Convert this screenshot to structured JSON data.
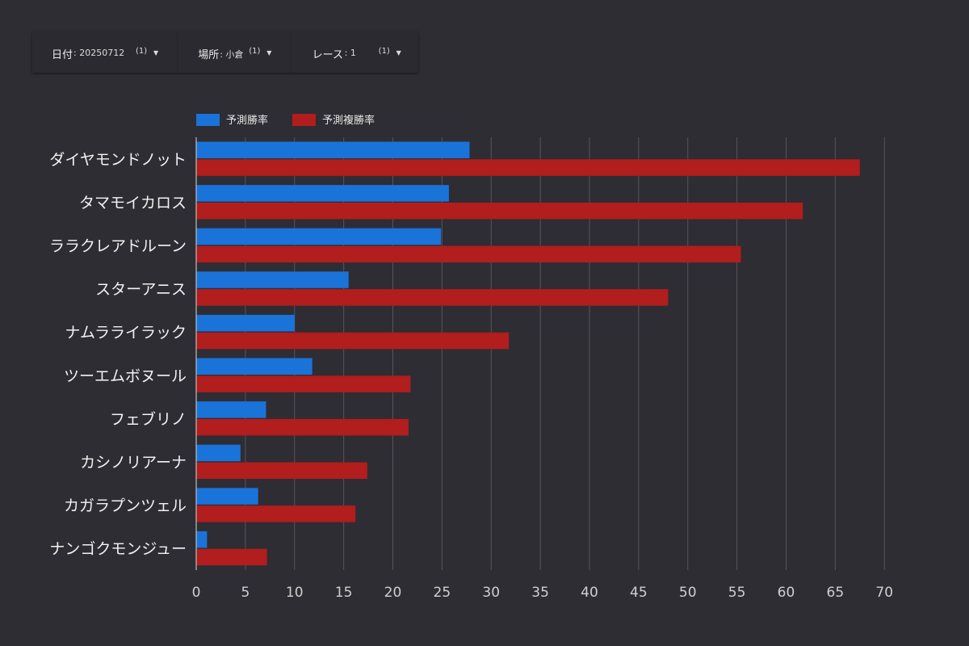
{
  "filters": [
    {
      "label": "日付",
      "value": ": 20250712",
      "count": "(1)"
    },
    {
      "label": "場所",
      "value": ": 小倉",
      "count": "(1)"
    },
    {
      "label": "レース",
      "value": ": 1",
      "count": "(1)"
    }
  ],
  "colors": {
    "win": "#1a73d9",
    "place": "#b21d1d",
    "grid": "#55545b",
    "axis": "#bdbdbd"
  },
  "chart_data": {
    "type": "bar",
    "orientation": "horizontal",
    "legend_position": "top-left",
    "grid": true,
    "categories": [
      "ダイヤモンドノット",
      "タマモイカロス",
      "ララクレアドルーン",
      "スターアニス",
      "ナムラライラック",
      "ツーエムボヌール",
      "フェブリノ",
      "カシノリアーナ",
      "カガラプンツェル",
      "ナンゴクモンジュー"
    ],
    "series": [
      {
        "name": "予測勝率",
        "values": [
          27.8,
          25.7,
          24.9,
          15.5,
          10.0,
          11.8,
          7.1,
          4.5,
          6.3,
          1.1
        ]
      },
      {
        "name": "予測複勝率",
        "values": [
          67.5,
          61.7,
          55.4,
          48.0,
          31.8,
          21.8,
          21.6,
          17.4,
          16.2,
          7.2
        ]
      }
    ],
    "xlim": [
      0,
      70
    ],
    "xticks": [
      0,
      5,
      10,
      15,
      20,
      25,
      30,
      35,
      40,
      45,
      50,
      55,
      60,
      65,
      70
    ]
  }
}
